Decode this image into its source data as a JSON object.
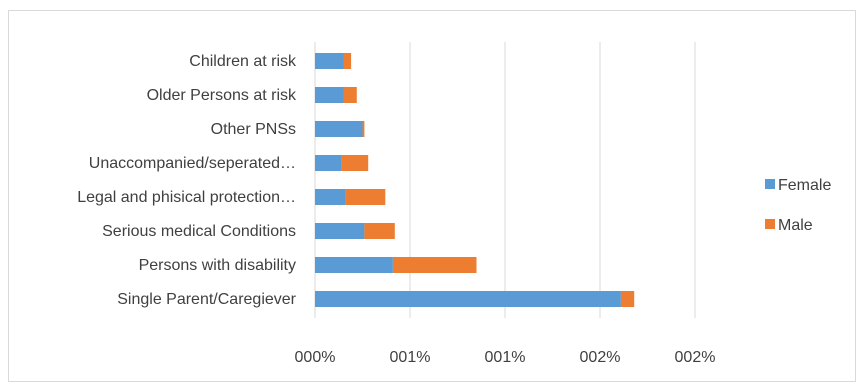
{
  "chart_data": {
    "type": "bar",
    "orientation": "horizontal",
    "stacked": true,
    "title": "",
    "xlabel": "",
    "ylabel": "",
    "categories": [
      "Single Parent/Caregiever",
      "Persons with disability",
      "Serious medical Conditions",
      "Legal and phisical protection…",
      "Unaccompanied/seperated…",
      "Other PNSs",
      "Older Persons at risk",
      "Children at risk"
    ],
    "series": [
      {
        "name": "Female",
        "color": "#5b9bd5",
        "values": [
          1.61,
          0.41,
          0.26,
          0.16,
          0.14,
          0.25,
          0.15,
          0.15
        ]
      },
      {
        "name": "Male",
        "color": "#ed7d31",
        "values": [
          0.07,
          0.44,
          0.16,
          0.21,
          0.14,
          0.01,
          0.07,
          0.04
        ]
      }
    ],
    "x_ticks": [
      "000%",
      "001%",
      "001%",
      "002%",
      "002%"
    ],
    "xlim": [
      0,
      2.0
    ],
    "grid": "vertical",
    "legend_position": "right"
  }
}
